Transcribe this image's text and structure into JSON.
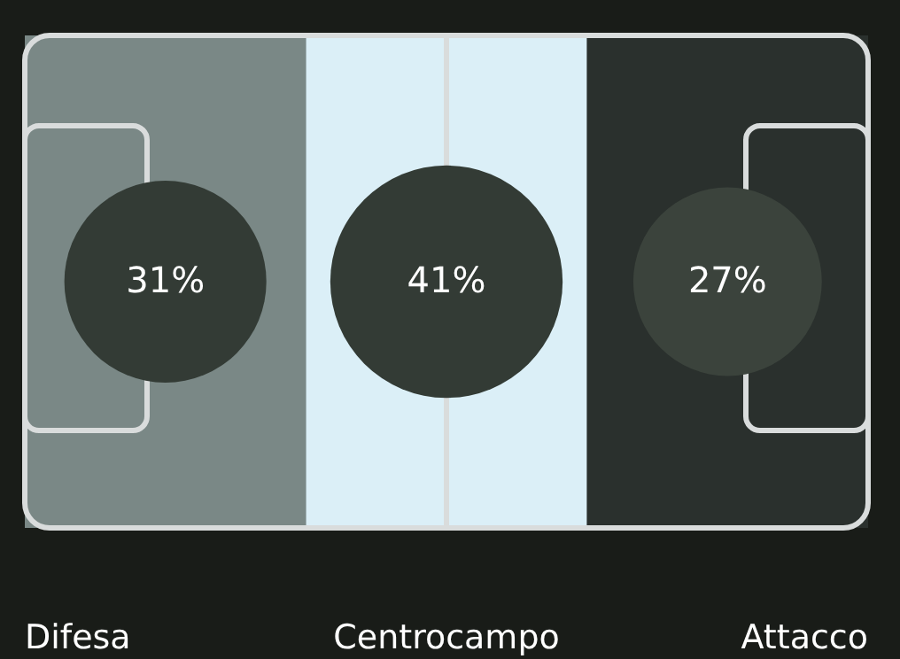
{
  "chart_data": {
    "type": "other",
    "categories": [
      "Difesa",
      "Centrocampo",
      "Attacco"
    ],
    "values": [
      31,
      41,
      27
    ],
    "value_labels": [
      "31%",
      "41%",
      "27%"
    ],
    "colors": [
      "#333b35",
      "#333b35",
      "#3b433c"
    ]
  }
}
